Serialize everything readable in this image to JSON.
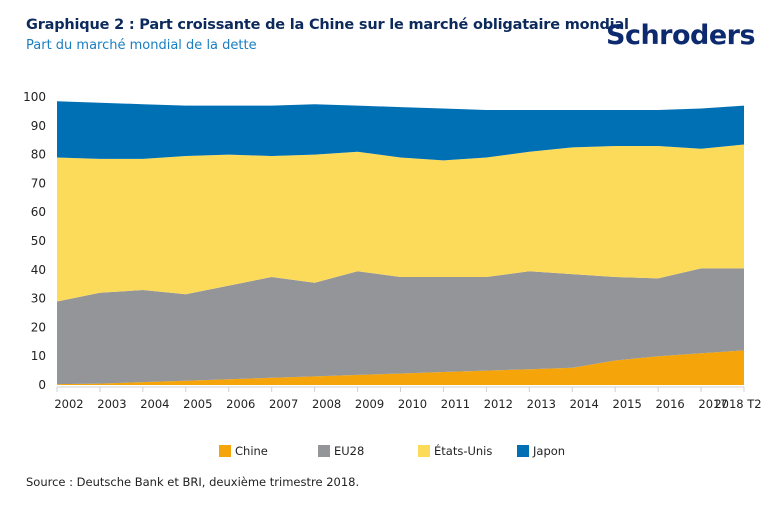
{
  "header": {
    "title": "Graphique 2 : Part croissante de la Chine sur le marché obligataire mondial",
    "subtitle": "Part du marché mondial de la dette",
    "logo": "Schroders"
  },
  "footer": {
    "source": "Source : Deutsche Bank et BRI, deuxième trimestre 2018."
  },
  "chart_data": {
    "type": "area",
    "stacked": true,
    "title": "Part croissante de la Chine sur le marché obligataire mondial",
    "subtitle": "Part du marché mondial de la dette",
    "xlabel": "",
    "ylabel": "",
    "ylim": [
      0,
      100
    ],
    "yticks": [
      0,
      10,
      20,
      30,
      40,
      50,
      60,
      70,
      80,
      90,
      100
    ],
    "grid": false,
    "legend_position": "bottom",
    "categories": [
      "2002",
      "2003",
      "2004",
      "2005",
      "2006",
      "2007",
      "2008",
      "2009",
      "2010",
      "2011",
      "2012",
      "2013",
      "2014",
      "2015",
      "2016",
      "2017",
      "2018 T2"
    ],
    "series": [
      {
        "name": "Chine",
        "color": "#f5a50a",
        "values": [
          0.3,
          0.5,
          1.0,
          1.5,
          2.0,
          2.5,
          3.0,
          3.5,
          4.0,
          4.5,
          5.0,
          5.5,
          6.0,
          8.5,
          10.0,
          11.0,
          12.0
        ]
      },
      {
        "name": "EU28",
        "color": "#939598",
        "values": [
          28.7,
          31.5,
          32.0,
          30.0,
          32.5,
          35.0,
          32.5,
          36.0,
          33.5,
          33.0,
          32.5,
          34.0,
          32.5,
          29.0,
          27.0,
          29.5,
          28.5
        ]
      },
      {
        "name": "États-Unis",
        "color": "#fddb5a",
        "values": [
          50.0,
          46.5,
          45.5,
          48.0,
          45.5,
          42.0,
          44.5,
          41.5,
          41.5,
          40.5,
          41.5,
          41.5,
          44.0,
          45.5,
          46.0,
          41.5,
          43.0
        ]
      },
      {
        "name": "Japon",
        "color": "#0070b5",
        "values": [
          19.5,
          19.5,
          19.0,
          17.5,
          17.0,
          17.5,
          17.5,
          16.0,
          17.5,
          18.0,
          16.5,
          14.5,
          13.0,
          12.5,
          12.5,
          14.0,
          13.5
        ]
      }
    ]
  }
}
